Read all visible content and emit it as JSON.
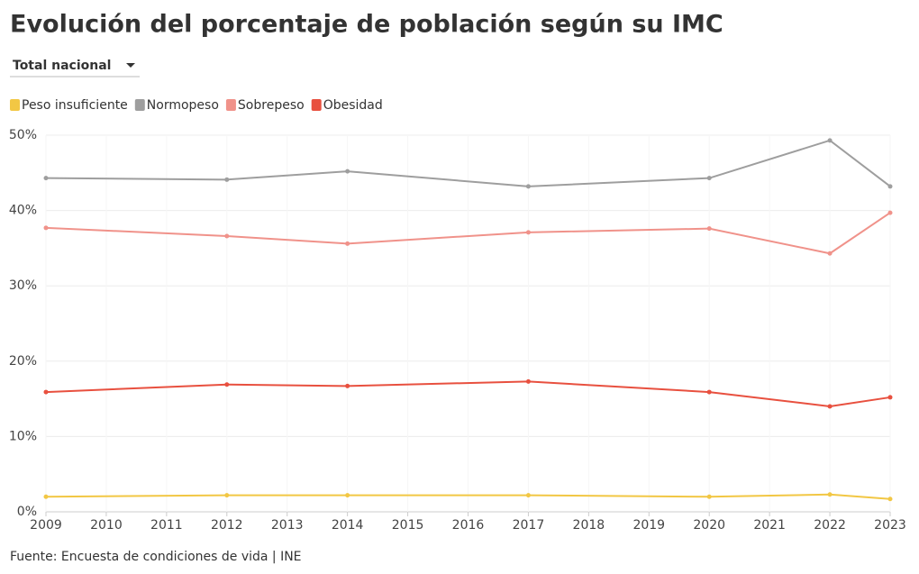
{
  "chart_data": {
    "type": "line",
    "title": "Evolución del porcentaje de población según su IMC",
    "filter": "Total nacional",
    "source": "Fuente: Encuesta de condiciones de vida | INE",
    "x": [
      2009,
      2012,
      2014,
      2017,
      2020,
      2022,
      2023
    ],
    "series": [
      {
        "name": "Peso insuficiente",
        "color": "#f2c744",
        "values": [
          2.0,
          2.2,
          2.2,
          2.2,
          2.0,
          2.3,
          1.7
        ]
      },
      {
        "name": "Normopeso",
        "color": "#9e9e9e",
        "values": [
          44.3,
          44.1,
          45.2,
          43.2,
          44.3,
          49.3,
          43.2
        ]
      },
      {
        "name": "Sobrepeso",
        "color": "#f0928a",
        "values": [
          37.7,
          36.6,
          35.6,
          37.1,
          37.6,
          34.3,
          39.7
        ]
      },
      {
        "name": "Obesidad",
        "color": "#e8503f",
        "values": [
          15.9,
          16.9,
          16.7,
          17.3,
          15.9,
          14.0,
          15.2
        ]
      }
    ],
    "xlim": [
      2009,
      2023
    ],
    "xticks": [
      2009,
      2010,
      2011,
      2012,
      2013,
      2014,
      2015,
      2016,
      2017,
      2018,
      2019,
      2020,
      2021,
      2022,
      2023
    ],
    "ylim": [
      0,
      50
    ],
    "yticks": [
      {
        "value": 0,
        "label": "0%"
      },
      {
        "value": 10,
        "label": "10%"
      },
      {
        "value": 20,
        "label": "20%"
      },
      {
        "value": 30,
        "label": "30%"
      },
      {
        "value": 40,
        "label": "40%"
      },
      {
        "value": 50,
        "label": "50%"
      }
    ],
    "grid": true
  }
}
